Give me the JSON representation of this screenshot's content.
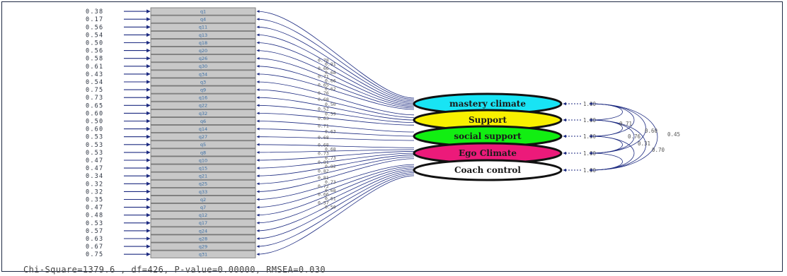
{
  "indicators": [
    {
      "label": "q1",
      "error": "0.38"
    },
    {
      "label": "q4",
      "error": "0.17"
    },
    {
      "label": "q11",
      "error": "0.56"
    },
    {
      "label": "q13",
      "error": "0.54"
    },
    {
      "label": "q18",
      "error": "0.50"
    },
    {
      "label": "q20",
      "error": "0.56"
    },
    {
      "label": "q26",
      "error": "0.58"
    },
    {
      "label": "q30",
      "error": "0.61"
    },
    {
      "label": "q34",
      "error": "0.43"
    },
    {
      "label": "q3",
      "error": "0.54"
    },
    {
      "label": "q9",
      "error": "0.75"
    },
    {
      "label": "q16",
      "error": "0.73"
    },
    {
      "label": "q22",
      "error": "0.65"
    },
    {
      "label": "q32",
      "error": "0.60"
    },
    {
      "label": "q6",
      "error": "0.50"
    },
    {
      "label": "q14",
      "error": "0.60"
    },
    {
      "label": "q27",
      "error": "0.53"
    },
    {
      "label": "q5",
      "error": "0.53"
    },
    {
      "label": "q8",
      "error": "0.53"
    },
    {
      "label": "q10",
      "error": "0.47"
    },
    {
      "label": "q15",
      "error": "0.47"
    },
    {
      "label": "q21",
      "error": "0.34"
    },
    {
      "label": "q25",
      "error": "0.32"
    },
    {
      "label": "q33",
      "error": "0.32"
    },
    {
      "label": "q2",
      "error": "0.35"
    },
    {
      "label": "q7",
      "error": "0.47"
    },
    {
      "label": "q12",
      "error": "0.48"
    },
    {
      "label": "q17",
      "error": "0.53"
    },
    {
      "label": "q24",
      "error": "0.57"
    },
    {
      "label": "q28",
      "error": "0.63"
    },
    {
      "label": "q29",
      "error": "0.67"
    },
    {
      "label": "q31",
      "error": "0.75"
    }
  ],
  "factors": [
    {
      "name": "mastery climate",
      "color": "#18e4f4",
      "variance": "1.00",
      "indicators": [
        0,
        1,
        2,
        3,
        4,
        5,
        6,
        7,
        8
      ],
      "loadings": [
        "0.78",
        "0.91",
        "0.66",
        "0.68",
        "0.71",
        "0.66",
        "0.65",
        "0.62",
        "0.76"
      ]
    },
    {
      "name": "Support",
      "color": "#f8f000",
      "variance": "1.00",
      "indicators": [
        9,
        10,
        11,
        12,
        13
      ],
      "loadings": [
        "0.68",
        "0.50",
        "0.52",
        "0.59",
        "0.63"
      ]
    },
    {
      "name": "social support",
      "color": "#12ee12",
      "variance": "1.00",
      "indicators": [
        14,
        15,
        16
      ],
      "loadings": [
        "0.71",
        "0.63",
        "0.68"
      ]
    },
    {
      "name": "Ego Climate",
      "color": "#ec1a7a",
      "variance": "1.00",
      "indicators": [
        17,
        18,
        19,
        20,
        21,
        22,
        23
      ],
      "loadings": [
        "0.68",
        "0.68",
        "0.73",
        "0.73",
        "0.81",
        "0.82",
        "0.82"
      ]
    },
    {
      "name": "Coach control",
      "color": "#ffffff",
      "variance": "1.00",
      "indicators": [
        24,
        25,
        26,
        27,
        28,
        29,
        30,
        31
      ],
      "loadings": [
        "0.81",
        "0.73",
        "0.72",
        "0.68",
        "0.66",
        "0.61",
        "0.57",
        "0.50"
      ]
    }
  ],
  "correlations": [
    "0.71",
    "0.60",
    "0.76",
    "0.45",
    "0.31",
    "0.70"
  ],
  "fit": {
    "text": "Chi-Square=1379.6 , df=426, P-value=0.00000, RMSEA=0.030"
  },
  "colors": {
    "box_fill": "#c8c8c8",
    "box_stroke": "#6b6b6b",
    "path_color": "#1c2a80"
  }
}
